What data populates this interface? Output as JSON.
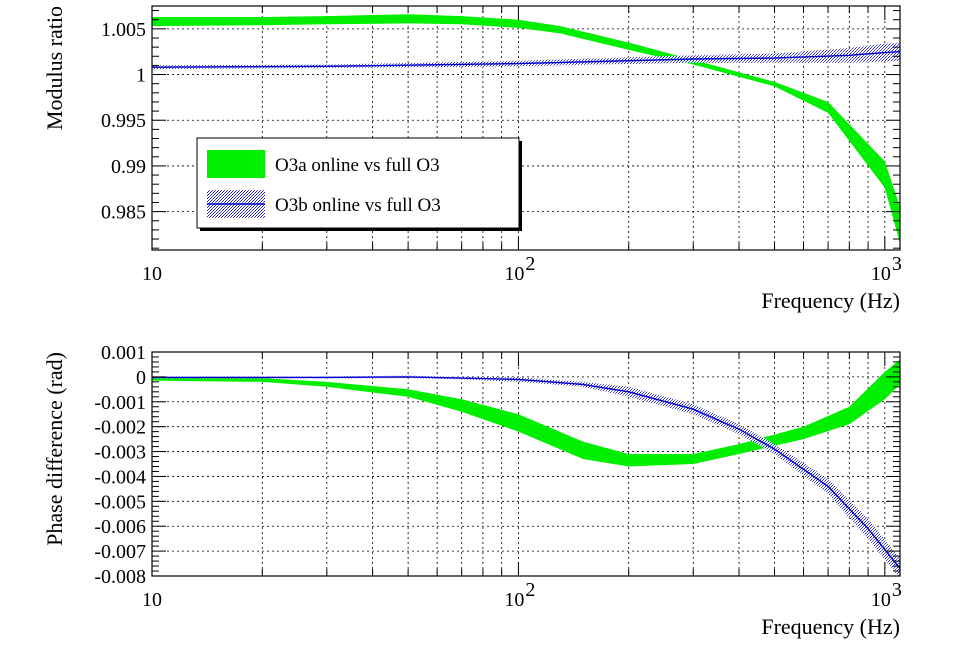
{
  "chart_data": [
    {
      "type": "area",
      "panel": "top",
      "xlabel": "Frequency (Hz)",
      "ylabel": "Modulus ratio",
      "xscale": "log",
      "xlim": [
        10,
        1100
      ],
      "ylim": [
        0.9808,
        1.0075
      ],
      "x_ticks": [
        10,
        100,
        1000
      ],
      "x_tick_labels": [
        "10",
        "10",
        "10"
      ],
      "x_tick_exponents": [
        "",
        "2",
        "3"
      ],
      "y_ticks": [
        1.005,
        1,
        0.995,
        0.99,
        0.985
      ],
      "y_tick_labels": [
        "1.005",
        "1",
        "0.995",
        "0.99",
        "0.985"
      ],
      "grid": true,
      "legend": {
        "placement": "left",
        "entries": [
          "O3a online vs full O3",
          "O3b online vs full O3"
        ]
      },
      "series": [
        {
          "name": "O3a online vs full O3",
          "style": "band",
          "color": "#00ee00",
          "x": [
            10,
            20,
            30,
            50,
            70,
            100,
            130,
            200,
            300,
            500,
            700,
            1000,
            1100
          ],
          "lower": [
            1.0053,
            1.0054,
            1.0055,
            1.0056,
            1.0055,
            1.0051,
            1.0045,
            1.0027,
            1.0011,
            0.9987,
            0.9958,
            0.9876,
            0.9815
          ],
          "upper": [
            1.0063,
            1.0063,
            1.0064,
            1.0066,
            1.0064,
            1.006,
            1.0053,
            1.0035,
            1.0016,
            0.9992,
            0.997,
            0.9905,
            0.9855
          ]
        },
        {
          "name": "O3b online vs full O3",
          "style": "band+line",
          "color": "#0000cc",
          "x": [
            10,
            30,
            100,
            300,
            500,
            800,
            1000,
            1100
          ],
          "center": [
            1.0008,
            1.0009,
            1.0012,
            1.0017,
            1.0018,
            1.0021,
            1.0024,
            1.0025
          ],
          "lower": [
            1.0006,
            1.0007,
            1.0009,
            1.0013,
            1.0013,
            1.0013,
            1.0014,
            1.0015
          ],
          "upper": [
            1.001,
            1.0011,
            1.0015,
            1.0021,
            1.0023,
            1.0029,
            1.0034,
            1.0035
          ]
        }
      ]
    },
    {
      "type": "area",
      "panel": "bottom",
      "xlabel": "Frequency (Hz)",
      "ylabel": "Phase difference (rad)",
      "xscale": "log",
      "xlim": [
        10,
        1100
      ],
      "ylim": [
        -0.008,
        0.001
      ],
      "x_ticks": [
        10,
        100,
        1000
      ],
      "x_tick_labels": [
        "10",
        "10",
        "10"
      ],
      "x_tick_exponents": [
        "",
        "2",
        "3"
      ],
      "y_ticks": [
        0.001,
        0,
        -0.001,
        -0.002,
        -0.003,
        -0.004,
        -0.005,
        -0.006,
        -0.007,
        -0.008
      ],
      "y_tick_labels": [
        "0.001",
        "0",
        "-0.001",
        "-0.002",
        "-0.003",
        "-0.004",
        "-0.005",
        "-0.006",
        "-0.007",
        "-0.008"
      ],
      "grid": true,
      "series": [
        {
          "name": "O3a online vs full O3",
          "style": "band",
          "color": "#00ee00",
          "x": [
            10,
            20,
            30,
            50,
            70,
            100,
            150,
            200,
            300,
            400,
            600,
            800,
            1000,
            1100
          ],
          "lower": [
            -0.00015,
            -0.0002,
            -0.0004,
            -0.0008,
            -0.0014,
            -0.0022,
            -0.0033,
            -0.0036,
            -0.0035,
            -0.0031,
            -0.0025,
            -0.0019,
            -0.0009,
            -0.0003
          ],
          "upper": [
            0.0,
            -5e-05,
            -0.0002,
            -0.0005,
            -0.0009,
            -0.0015,
            -0.0026,
            -0.0031,
            -0.0031,
            -0.0027,
            -0.002,
            -0.0012,
            0.0002,
            0.0007
          ]
        },
        {
          "name": "O3b online vs full O3",
          "style": "band+line",
          "color": "#0000cc",
          "x": [
            10,
            30,
            50,
            70,
            100,
            150,
            200,
            300,
            400,
            500,
            700,
            900,
            1100
          ],
          "center": [
            -2e-05,
            -2e-05,
            0.0,
            -5e-05,
            -0.0001,
            -0.0003,
            -0.0006,
            -0.0013,
            -0.0021,
            -0.0029,
            -0.0044,
            -0.0061,
            -0.0077
          ],
          "lower": [
            -6e-05,
            -6e-05,
            -5e-05,
            -0.0001,
            -0.0002,
            -0.0004,
            -0.0008,
            -0.0015,
            -0.0023,
            -0.0031,
            -0.0047,
            -0.0065,
            -0.0081
          ],
          "upper": [
            2e-05,
            2e-05,
            5e-05,
            0.0,
            -2e-05,
            -0.0002,
            -0.0004,
            -0.0011,
            -0.0019,
            -0.0027,
            -0.0041,
            -0.0057,
            -0.0073
          ]
        }
      ]
    }
  ]
}
